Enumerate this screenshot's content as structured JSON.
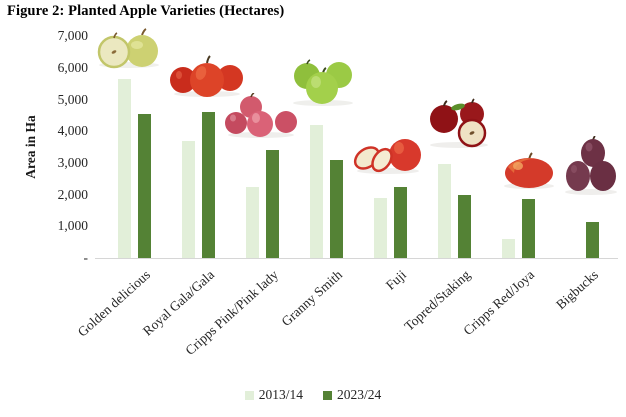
{
  "chart_data": {
    "type": "bar",
    "title": "Figure 2: Planted Apple Varieties (Hectares)",
    "ylabel": "Area in Ha",
    "xlabel": "",
    "categories": [
      "Golden delicious",
      "Royal Gala/Gala",
      "Cripps Pink/Pink lady",
      "Granny Smith",
      "Fuji",
      "Topred/Staking",
      "Cripps Red/Joya",
      "Bigbucks"
    ],
    "series": [
      {
        "name": "2013/14",
        "color": "#e2efd9",
        "values": [
          5650,
          3700,
          2250,
          4200,
          1900,
          2950,
          600,
          0
        ]
      },
      {
        "name": "2023/24",
        "color": "#548235",
        "values": [
          4550,
          4600,
          3400,
          3100,
          2250,
          2000,
          1850,
          1150
        ]
      }
    ],
    "ylim": [
      0,
      7000
    ],
    "ytick_labels": [
      "7,000",
      "6,000",
      "5,000",
      "4,000",
      "3,000",
      "2,000",
      "1,000",
      "-"
    ],
    "grid": false,
    "legend_position": "bottom"
  },
  "decorations": {
    "apple_icons": [
      "golden-delicious-apples-image",
      "royal-gala-apples-image",
      "cripps-pink-apples-image",
      "granny-smith-apples-image",
      "fuji-apples-image",
      "topred-apples-image",
      "cripps-red-apple-image",
      "bigbucks-apples-image"
    ]
  }
}
